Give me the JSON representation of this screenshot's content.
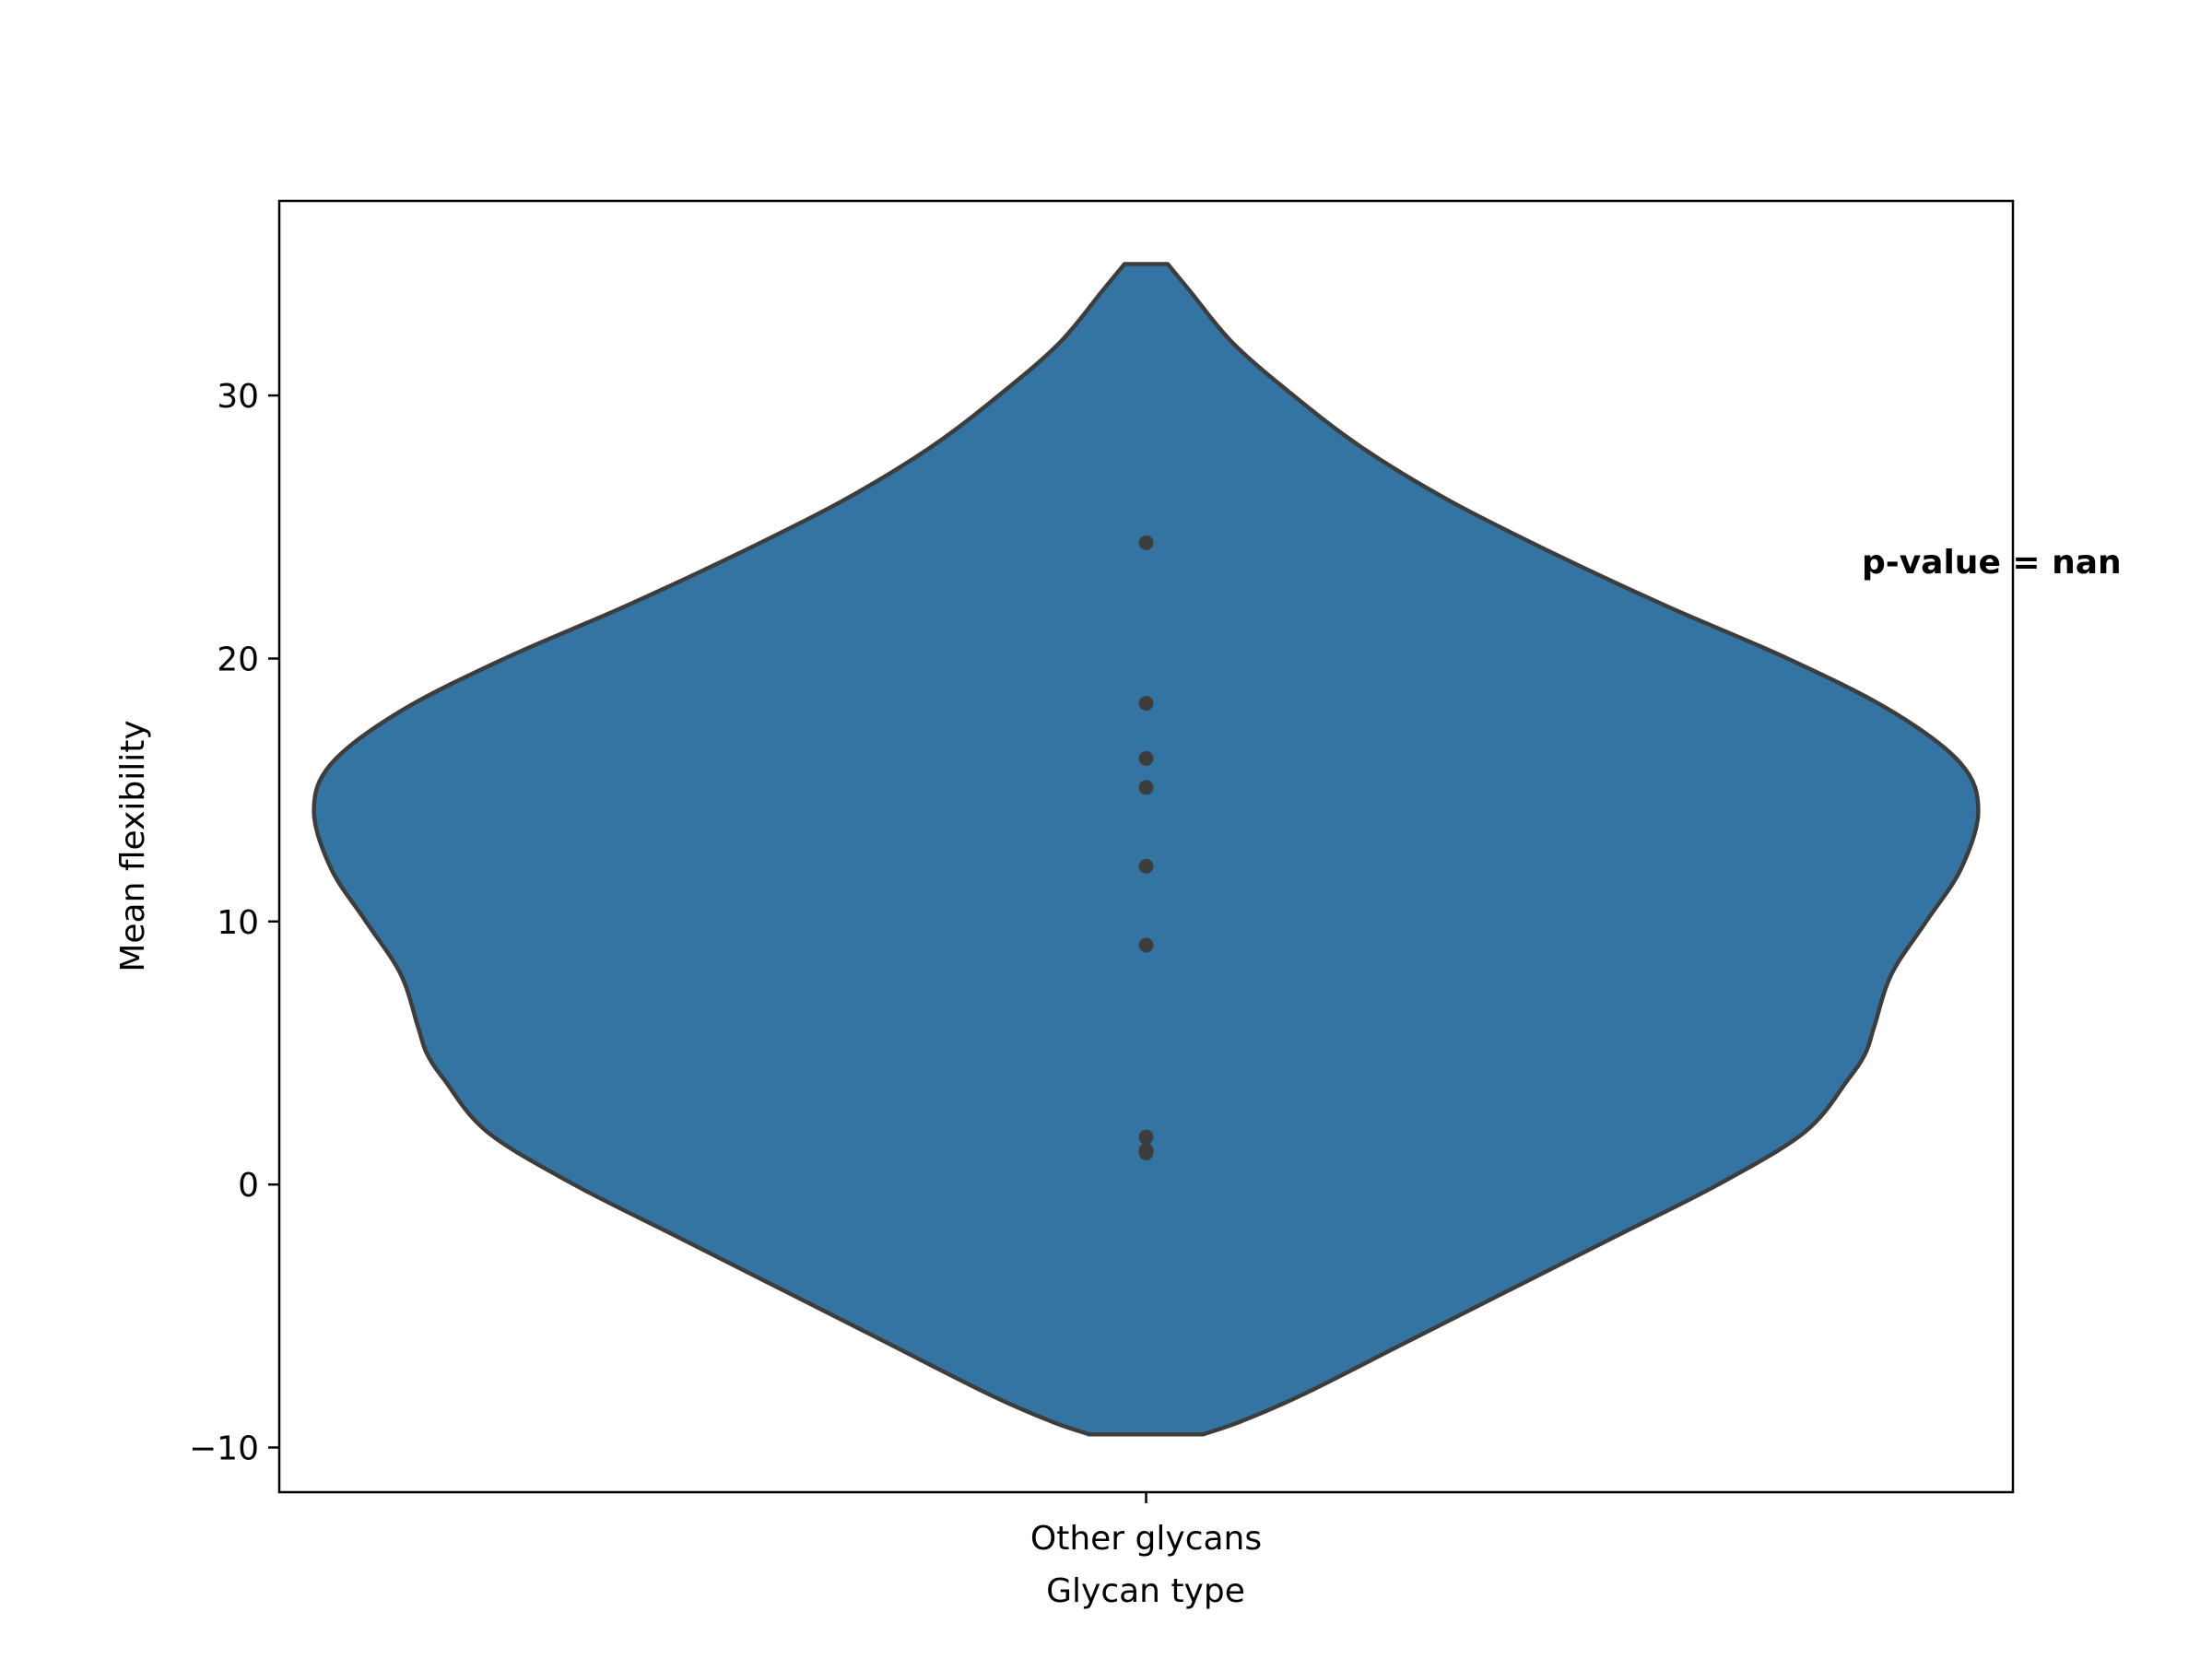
{
  "chart_data": {
    "type": "violin",
    "categories": [
      "Other glycans"
    ],
    "series": [
      {
        "category": "Other glycans",
        "points": [
          24.4,
          18.3,
          16.2,
          15.1,
          12.1,
          9.1,
          1.8,
          1.3,
          1.2
        ],
        "range": [
          -9.5,
          35.0
        ],
        "density_profile": [
          {
            "y": -9.5,
            "w": 0.066
          },
          {
            "y": -9.0,
            "w": 0.11
          },
          {
            "y": -8.0,
            "w": 0.18
          },
          {
            "y": -6.0,
            "w": 0.3
          },
          {
            "y": -4.0,
            "w": 0.42
          },
          {
            "y": -2.0,
            "w": 0.54
          },
          {
            "y": 0.0,
            "w": 0.66
          },
          {
            "y": 2.0,
            "w": 0.76
          },
          {
            "y": 4.0,
            "w": 0.81
          },
          {
            "y": 5.0,
            "w": 0.83
          },
          {
            "y": 6.0,
            "w": 0.84
          },
          {
            "y": 8.0,
            "w": 0.86
          },
          {
            "y": 10.0,
            "w": 0.9
          },
          {
            "y": 12.0,
            "w": 0.94
          },
          {
            "y": 14.2,
            "w": 0.96
          },
          {
            "y": 16.0,
            "w": 0.94
          },
          {
            "y": 18.0,
            "w": 0.86
          },
          {
            "y": 20.0,
            "w": 0.74
          },
          {
            "y": 22.0,
            "w": 0.6
          },
          {
            "y": 24.0,
            "w": 0.47
          },
          {
            "y": 26.0,
            "w": 0.35
          },
          {
            "y": 28.0,
            "w": 0.25
          },
          {
            "y": 30.0,
            "w": 0.17
          },
          {
            "y": 32.0,
            "w": 0.1
          },
          {
            "y": 34.0,
            "w": 0.05
          },
          {
            "y": 35.0,
            "w": 0.025
          }
        ]
      }
    ],
    "title": "",
    "xlabel": "Glycan type",
    "ylabel": "Mean flexibility",
    "ylim": [
      -11.7,
      37.4
    ],
    "yticks": [
      -10,
      0,
      10,
      20,
      30
    ],
    "ytick_labels": [
      "−10",
      "0",
      "10",
      "20",
      "30"
    ],
    "annotation": "p-value = nan",
    "grid": false,
    "colors": {
      "violin_fill": "#3474a2",
      "violin_edge": "#3d3d3d",
      "points": "#3d3d3d"
    }
  }
}
